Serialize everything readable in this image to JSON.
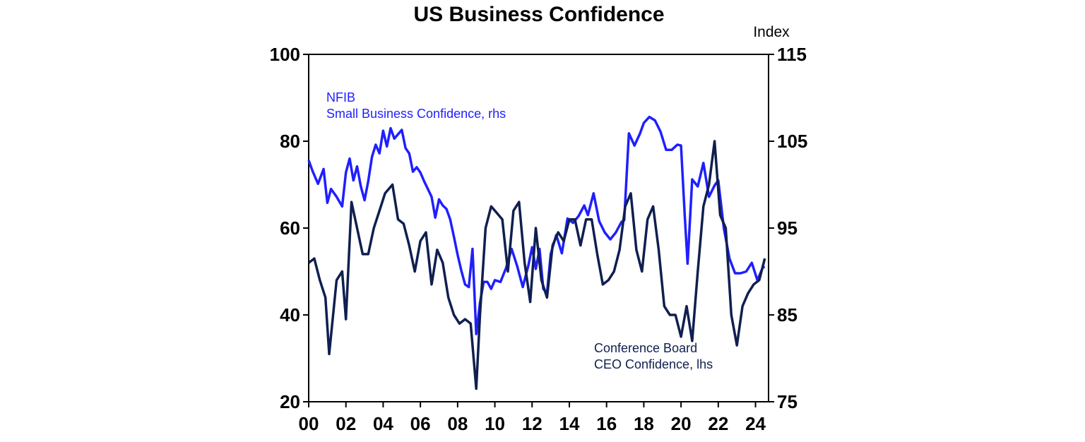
{
  "chart_data": {
    "type": "line",
    "title": "US Business Confidence",
    "right_axis_unit": "Index",
    "x_tick_labels": [
      "00",
      "02",
      "04",
      "06",
      "08",
      "10",
      "12",
      "14",
      "16",
      "18",
      "20",
      "22",
      "24"
    ],
    "x_tick_years": [
      2000,
      2002,
      2004,
      2006,
      2008,
      2010,
      2012,
      2014,
      2016,
      2018,
      2020,
      2022,
      2024
    ],
    "xlim": [
      2000.0,
      2024.7
    ],
    "y_left": {
      "ylim": [
        20,
        100
      ],
      "ticks": [
        20,
        40,
        60,
        80,
        100
      ]
    },
    "y_right": {
      "ylim": [
        75,
        115
      ],
      "ticks": [
        75,
        85,
        95,
        105,
        115
      ]
    },
    "grid": false,
    "colors": {
      "nfib": "#1f1fff",
      "ceo": "#0f1f4f"
    },
    "series": [
      {
        "name": "NFIB Small Business Confidence, rhs",
        "label_lines": [
          "NFIB",
          "Small Business Confidence, rhs"
        ],
        "axis": "right",
        "x": [
          2000.0,
          2000.2,
          2000.5,
          2000.8,
          2001.0,
          2001.2,
          2001.5,
          2001.8,
          2002.0,
          2002.2,
          2002.4,
          2002.6,
          2002.8,
          2003.0,
          2003.2,
          2003.4,
          2003.6,
          2003.8,
          2004.0,
          2004.2,
          2004.4,
          2004.6,
          2004.8,
          2005.0,
          2005.2,
          2005.4,
          2005.6,
          2005.8,
          2006.0,
          2006.2,
          2006.4,
          2006.6,
          2006.8,
          2007.0,
          2007.2,
          2007.4,
          2007.6,
          2007.8,
          2008.0,
          2008.2,
          2008.4,
          2008.6,
          2008.8,
          2009.0,
          2009.2,
          2009.4,
          2009.6,
          2009.8,
          2010.0,
          2010.3,
          2010.6,
          2010.9,
          2011.2,
          2011.5,
          2011.8,
          2012.0,
          2012.2,
          2012.4,
          2012.6,
          2012.8,
          2013.0,
          2013.3,
          2013.6,
          2013.9,
          2014.2,
          2014.5,
          2014.8,
          2015.0,
          2015.3,
          2015.6,
          2015.9,
          2016.2,
          2016.5,
          2016.8,
          2016.95,
          2017.2,
          2017.5,
          2017.8,
          2018.0,
          2018.3,
          2018.6,
          2018.9,
          2019.2,
          2019.5,
          2019.8,
          2020.0,
          2020.2,
          2020.35,
          2020.6,
          2020.9,
          2021.2,
          2021.5,
          2021.8,
          2022.0,
          2022.3,
          2022.6,
          2022.9,
          2023.2,
          2023.5,
          2023.8,
          2024.1,
          2024.4,
          2024.5
        ],
        "y": [
          102.8,
          101.6,
          100.1,
          101.8,
          97.9,
          99.5,
          98.6,
          97.5,
          101.4,
          103.0,
          100.5,
          102.1,
          99.8,
          98.2,
          100.4,
          103.2,
          104.6,
          103.6,
          106.2,
          104.4,
          106.5,
          105.3,
          105.8,
          106.3,
          104.2,
          103.6,
          101.5,
          102.0,
          101.4,
          100.4,
          99.5,
          98.6,
          96.2,
          98.3,
          97.6,
          97.2,
          96.0,
          94.0,
          91.9,
          90.1,
          88.5,
          88.2,
          92.6,
          82.8,
          86.4,
          88.8,
          88.8,
          88.0,
          89.0,
          88.8,
          90.4,
          92.6,
          90.6,
          88.2,
          90.7,
          92.8,
          90.3,
          92.6,
          88.0,
          87.5,
          92.0,
          94.2,
          92.1,
          96.1,
          95.6,
          96.4,
          97.6,
          96.5,
          99.0,
          95.8,
          94.5,
          93.7,
          94.5,
          95.7,
          95.9,
          105.9,
          104.5,
          105.9,
          107.1,
          107.8,
          107.4,
          106.1,
          104.0,
          104.0,
          104.6,
          104.5,
          96.4,
          90.9,
          100.6,
          99.8,
          102.5,
          98.6,
          99.9,
          100.5,
          95.0,
          91.5,
          89.8,
          89.8,
          90.0,
          91.0,
          89.0,
          90.5,
          90.5
        ]
      },
      {
        "name": "Conference Board CEO Confidence, lhs",
        "label_lines": [
          "Conference Board",
          "CEO Confidence, lhs"
        ],
        "axis": "left",
        "x": [
          2000.0,
          2000.3,
          2000.6,
          2000.9,
          2001.1,
          2001.5,
          2001.8,
          2002.0,
          2002.3,
          2002.6,
          2002.9,
          2003.2,
          2003.5,
          2003.8,
          2004.1,
          2004.5,
          2004.8,
          2005.1,
          2005.4,
          2005.7,
          2006.0,
          2006.3,
          2006.6,
          2006.9,
          2007.2,
          2007.5,
          2007.8,
          2008.1,
          2008.4,
          2008.7,
          2009.0,
          2009.2,
          2009.5,
          2009.8,
          2010.0,
          2010.4,
          2010.7,
          2011.0,
          2011.3,
          2011.6,
          2011.9,
          2012.2,
          2012.5,
          2012.8,
          2013.1,
          2013.4,
          2013.7,
          2014.0,
          2014.3,
          2014.6,
          2014.9,
          2015.2,
          2015.5,
          2015.8,
          2016.1,
          2016.4,
          2016.7,
          2017.0,
          2017.3,
          2017.6,
          2017.9,
          2018.2,
          2018.5,
          2018.8,
          2019.1,
          2019.4,
          2019.7,
          2020.0,
          2020.3,
          2020.6,
          2020.9,
          2021.2,
          2021.5,
          2021.8,
          2022.1,
          2022.4,
          2022.7,
          2023.0,
          2023.3,
          2023.6,
          2023.9,
          2024.2,
          2024.5
        ],
        "y": [
          52,
          53,
          48,
          44,
          31,
          48,
          50,
          39,
          66,
          60,
          54,
          54,
          60,
          64,
          68,
          70,
          62,
          61,
          56,
          50,
          57,
          59,
          47,
          55,
          52,
          44,
          40,
          38,
          39,
          38,
          23,
          40,
          60,
          65,
          64,
          62,
          50,
          64,
          66,
          52,
          43,
          60,
          48,
          44,
          56,
          59,
          57,
          62,
          62,
          56,
          62,
          62,
          54,
          47,
          48,
          50,
          55,
          65,
          68,
          55,
          50,
          62,
          65,
          55,
          42,
          40,
          40,
          35,
          42,
          34,
          50,
          65,
          70,
          80,
          63,
          60,
          40,
          33,
          42,
          45,
          47,
          48,
          53
        ]
      }
    ]
  }
}
